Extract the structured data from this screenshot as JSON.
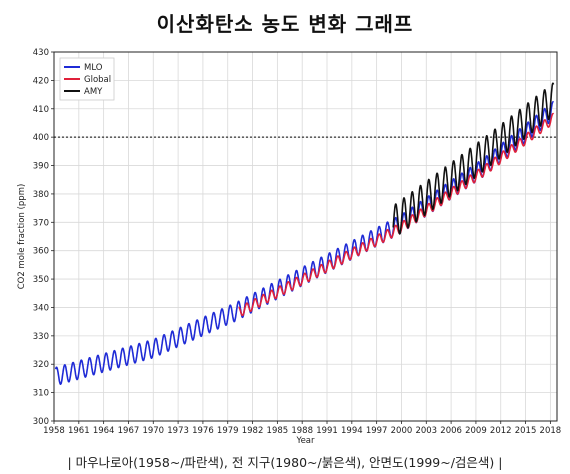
{
  "title": "이산화탄소 농도 변화 그래프",
  "caption": "| 마우나로아(1958~/파란색), 전 지구(1980~/붉은색), 안면도(1999~/검은색) |",
  "chart_data": {
    "type": "line",
    "xlabel": "Year",
    "ylabel": "CO2 mole fraction (ppm)",
    "xlim": [
      1958,
      2018.8
    ],
    "ylim": [
      300,
      430
    ],
    "xticks": [
      1958,
      1961,
      1964,
      1967,
      1970,
      1973,
      1976,
      1979,
      1982,
      1985,
      1988,
      1991,
      1994,
      1997,
      2000,
      2003,
      2006,
      2009,
      2012,
      2015,
      2018
    ],
    "yticks": [
      300,
      310,
      320,
      330,
      340,
      350,
      360,
      370,
      380,
      390,
      400,
      410,
      420,
      430
    ],
    "grid": true,
    "legend_position": "top-left",
    "reference_line": {
      "y": 400,
      "style": "dotted",
      "color": "#000000"
    },
    "series": [
      {
        "name": "MLO",
        "color": "#1f2bd6",
        "start": 1958.2,
        "end": 2018.4,
        "trend": [
          [
            1958,
            315.5
          ],
          [
            1970,
            325.5
          ],
          [
            1980,
            338.5
          ],
          [
            1990,
            354
          ],
          [
            2000,
            369.5
          ],
          [
            2010,
            389.5
          ],
          [
            2018,
            408.5
          ]
        ],
        "seasonal_amplitude": 3.2
      },
      {
        "name": "Global",
        "color": "#e0203a",
        "start": 1980.3,
        "end": 2018.4,
        "trend": [
          [
            1980,
            337.8
          ],
          [
            1990,
            352.8
          ],
          [
            2000,
            368.2
          ],
          [
            2010,
            388.2
          ],
          [
            2018,
            405.8
          ]
        ],
        "seasonal_amplitude": 1.8
      },
      {
        "name": "AMY",
        "color": "#111111",
        "start": 1999.0,
        "end": 2018.4,
        "trend": [
          [
            1999,
            370
          ],
          [
            2005,
            383
          ],
          [
            2010,
            394
          ],
          [
            2018,
            412.5
          ]
        ],
        "seasonal_amplitude": 5.8
      }
    ]
  }
}
